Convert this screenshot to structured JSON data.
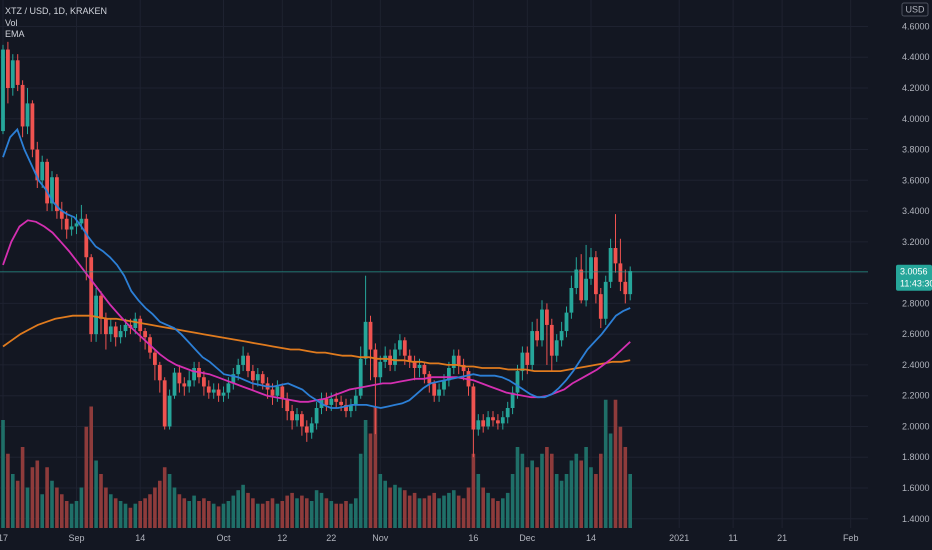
{
  "legend": {
    "symbol": "XTZ / USD, 1D, KRAKEN",
    "vol": "Vol",
    "ema": "EMA"
  },
  "currency_label": "USD",
  "colors": {
    "up": "#26a69a",
    "down": "#ef5350",
    "vol_up": "#1f6f68",
    "vol_down": "#8e3b3b",
    "ema_fast": "#2c7fd6",
    "ema_mid": "#d42fb1",
    "ema_slow": "#e07b1e",
    "current": "#26a69a",
    "grid": "#1e2230"
  },
  "current_price": {
    "label": "3.0056",
    "countdown": "11:43:30",
    "value": 3.0056
  },
  "chart_data": {
    "type": "candlestick",
    "title": "XTZ / USD, 1D, KRAKEN",
    "ylim": [
      1.34,
      4.72
    ],
    "y_ticks": [
      "4.6000",
      "4.4000",
      "4.2000",
      "4.0000",
      "3.8000",
      "3.6000",
      "3.4000",
      "3.2000",
      "3.0000",
      "2.8000",
      "2.6000",
      "2.4000",
      "2.2000",
      "2.0000",
      "1.8000",
      "1.6000",
      "1.4000"
    ],
    "y_tick_values": [
      4.6,
      4.4,
      4.2,
      4.0,
      3.8,
      3.6,
      3.4,
      3.2,
      3.0,
      2.8,
      2.6,
      2.4,
      2.2,
      2.0,
      1.8,
      1.6,
      1.4
    ],
    "x_ticks": [
      "17",
      "Sep",
      "14",
      "Oct",
      "12",
      "22",
      "Nov",
      "16",
      "Dec",
      "14",
      "2021",
      "11",
      "21",
      "Feb"
    ],
    "x_tick_index": [
      0,
      15,
      28,
      45,
      57,
      67,
      77,
      96,
      107,
      120,
      138,
      149,
      159,
      173
    ],
    "candles": [
      [
        3.92,
        4.45,
        4.48,
        3.9,
        80
      ],
      [
        4.45,
        4.2,
        4.5,
        4.1,
        55
      ],
      [
        4.2,
        4.38,
        4.42,
        4.15,
        40
      ],
      [
        4.38,
        4.22,
        4.42,
        4.18,
        35
      ],
      [
        4.22,
        3.95,
        4.25,
        3.88,
        60
      ],
      [
        3.95,
        4.1,
        4.2,
        3.9,
        30
      ],
      [
        4.1,
        3.8,
        4.12,
        3.75,
        45
      ],
      [
        3.8,
        3.6,
        3.85,
        3.55,
        50
      ],
      [
        3.6,
        3.72,
        3.76,
        3.55,
        25
      ],
      [
        3.72,
        3.45,
        3.74,
        3.4,
        45
      ],
      [
        3.45,
        3.62,
        3.66,
        3.4,
        35
      ],
      [
        3.62,
        3.4,
        3.64,
        3.35,
        30
      ],
      [
        3.4,
        3.35,
        3.46,
        3.28,
        25
      ],
      [
        3.35,
        3.28,
        3.4,
        3.22,
        20
      ],
      [
        3.28,
        3.3,
        3.36,
        3.24,
        18
      ],
      [
        3.3,
        3.32,
        3.38,
        3.25,
        20
      ],
      [
        3.32,
        3.35,
        3.44,
        3.28,
        30
      ],
      [
        3.35,
        3.1,
        3.38,
        2.95,
        75
      ],
      [
        3.1,
        2.6,
        3.12,
        2.55,
        90
      ],
      [
        2.6,
        2.85,
        2.9,
        2.55,
        50
      ],
      [
        2.85,
        2.7,
        2.88,
        2.6,
        40
      ],
      [
        2.7,
        2.6,
        2.74,
        2.5,
        30
      ],
      [
        2.6,
        2.65,
        2.7,
        2.55,
        25
      ],
      [
        2.65,
        2.58,
        2.68,
        2.52,
        22
      ],
      [
        2.58,
        2.62,
        2.66,
        2.54,
        20
      ],
      [
        2.62,
        2.66,
        2.7,
        2.58,
        18
      ],
      [
        2.66,
        2.64,
        2.7,
        2.6,
        15
      ],
      [
        2.64,
        2.7,
        2.74,
        2.6,
        18
      ],
      [
        2.7,
        2.62,
        2.72,
        2.55,
        20
      ],
      [
        2.62,
        2.58,
        2.64,
        2.5,
        22
      ],
      [
        2.58,
        2.48,
        2.6,
        2.44,
        25
      ],
      [
        2.48,
        2.4,
        2.5,
        2.3,
        30
      ],
      [
        2.4,
        2.3,
        2.42,
        2.22,
        35
      ],
      [
        2.3,
        2.0,
        2.32,
        1.98,
        45
      ],
      [
        2.0,
        2.2,
        2.24,
        1.98,
        40
      ],
      [
        2.2,
        2.35,
        2.38,
        2.18,
        30
      ],
      [
        2.35,
        2.28,
        2.4,
        2.22,
        25
      ],
      [
        2.28,
        2.26,
        2.32,
        2.2,
        22
      ],
      [
        2.26,
        2.3,
        2.36,
        2.22,
        20
      ],
      [
        2.3,
        2.38,
        2.42,
        2.26,
        24
      ],
      [
        2.38,
        2.32,
        2.42,
        2.28,
        20
      ],
      [
        2.32,
        2.26,
        2.36,
        2.2,
        22
      ],
      [
        2.26,
        2.22,
        2.3,
        2.18,
        20
      ],
      [
        2.22,
        2.24,
        2.28,
        2.18,
        18
      ],
      [
        2.24,
        2.2,
        2.28,
        2.16,
        16
      ],
      [
        2.2,
        2.22,
        2.26,
        2.16,
        18
      ],
      [
        2.22,
        2.28,
        2.32,
        2.18,
        20
      ],
      [
        2.28,
        2.34,
        2.38,
        2.24,
        24
      ],
      [
        2.34,
        2.4,
        2.44,
        2.3,
        28
      ],
      [
        2.4,
        2.46,
        2.52,
        2.36,
        32
      ],
      [
        2.46,
        2.36,
        2.48,
        2.32,
        26
      ],
      [
        2.36,
        2.3,
        2.4,
        2.24,
        22
      ],
      [
        2.3,
        2.34,
        2.38,
        2.26,
        18
      ],
      [
        2.34,
        2.28,
        2.36,
        2.24,
        18
      ],
      [
        2.28,
        2.24,
        2.32,
        2.18,
        20
      ],
      [
        2.24,
        2.2,
        2.28,
        2.14,
        22
      ],
      [
        2.2,
        2.26,
        2.3,
        2.16,
        18
      ],
      [
        2.26,
        2.18,
        2.28,
        2.12,
        20
      ],
      [
        2.18,
        2.1,
        2.22,
        2.04,
        24
      ],
      [
        2.1,
        2.04,
        2.14,
        1.98,
        26
      ],
      [
        2.04,
        2.08,
        2.12,
        2.0,
        22
      ],
      [
        2.08,
        2.0,
        2.1,
        1.94,
        24
      ],
      [
        2.0,
        1.96,
        2.04,
        1.9,
        22
      ],
      [
        1.96,
        2.02,
        2.06,
        1.92,
        20
      ],
      [
        2.02,
        2.12,
        2.16,
        1.98,
        28
      ],
      [
        2.12,
        2.18,
        2.22,
        2.08,
        26
      ],
      [
        2.18,
        2.14,
        2.22,
        2.1,
        22
      ],
      [
        2.14,
        2.18,
        2.22,
        2.1,
        20
      ],
      [
        2.18,
        2.16,
        2.22,
        2.12,
        18
      ],
      [
        2.16,
        2.14,
        2.2,
        2.1,
        18
      ],
      [
        2.14,
        2.1,
        2.18,
        2.06,
        20
      ],
      [
        2.1,
        2.14,
        2.18,
        2.06,
        18
      ],
      [
        2.14,
        2.2,
        2.24,
        2.1,
        22
      ],
      [
        2.2,
        2.44,
        2.52,
        2.18,
        55
      ],
      [
        2.44,
        2.68,
        2.98,
        2.4,
        80
      ],
      [
        2.68,
        2.5,
        2.72,
        2.3,
        70
      ],
      [
        2.5,
        2.32,
        2.54,
        1.95,
        90
      ],
      [
        2.32,
        2.42,
        2.46,
        2.28,
        40
      ],
      [
        2.42,
        2.46,
        2.52,
        2.38,
        35
      ],
      [
        2.46,
        2.4,
        2.5,
        2.36,
        30
      ],
      [
        2.4,
        2.5,
        2.54,
        2.36,
        32
      ],
      [
        2.5,
        2.56,
        2.6,
        2.46,
        30
      ],
      [
        2.56,
        2.46,
        2.58,
        2.4,
        28
      ],
      [
        2.46,
        2.42,
        2.5,
        2.38,
        24
      ],
      [
        2.42,
        2.38,
        2.46,
        2.3,
        26
      ],
      [
        2.38,
        2.4,
        2.44,
        2.32,
        22
      ],
      [
        2.4,
        2.34,
        2.42,
        2.28,
        22
      ],
      [
        2.34,
        2.28,
        2.36,
        2.22,
        24
      ],
      [
        2.28,
        2.2,
        2.3,
        2.16,
        26
      ],
      [
        2.2,
        2.24,
        2.28,
        2.16,
        22
      ],
      [
        2.24,
        2.3,
        2.34,
        2.2,
        24
      ],
      [
        2.3,
        2.38,
        2.42,
        2.26,
        26
      ],
      [
        2.38,
        2.46,
        2.5,
        2.34,
        28
      ],
      [
        2.46,
        2.4,
        2.5,
        2.34,
        24
      ],
      [
        2.4,
        2.36,
        2.44,
        2.3,
        22
      ],
      [
        2.36,
        2.26,
        2.38,
        2.2,
        30
      ],
      [
        2.26,
        1.98,
        2.28,
        1.8,
        55
      ],
      [
        1.98,
        2.04,
        2.08,
        1.94,
        40
      ],
      [
        2.04,
        2.0,
        2.08,
        1.96,
        30
      ],
      [
        2.0,
        2.06,
        2.1,
        1.98,
        26
      ],
      [
        2.06,
        2.04,
        2.1,
        2.0,
        22
      ],
      [
        2.04,
        2.02,
        2.08,
        1.98,
        20
      ],
      [
        2.02,
        2.06,
        2.1,
        1.98,
        22
      ],
      [
        2.06,
        2.12,
        2.16,
        2.02,
        26
      ],
      [
        2.12,
        2.22,
        2.26,
        2.08,
        40
      ],
      [
        2.22,
        2.36,
        2.4,
        2.18,
        60
      ],
      [
        2.36,
        2.48,
        2.52,
        2.3,
        55
      ],
      [
        2.48,
        2.4,
        2.52,
        2.34,
        45
      ],
      [
        2.4,
        2.62,
        2.68,
        2.36,
        50
      ],
      [
        2.62,
        2.56,
        2.7,
        2.52,
        45
      ],
      [
        2.56,
        2.76,
        2.82,
        2.52,
        55
      ],
      [
        2.76,
        2.66,
        2.8,
        2.4,
        60
      ],
      [
        2.66,
        2.46,
        2.7,
        2.36,
        55
      ],
      [
        2.46,
        2.56,
        2.6,
        2.42,
        40
      ],
      [
        2.56,
        2.62,
        2.68,
        2.52,
        35
      ],
      [
        2.62,
        2.74,
        2.78,
        2.58,
        40
      ],
      [
        2.74,
        2.9,
        2.98,
        2.7,
        50
      ],
      [
        2.9,
        3.02,
        3.1,
        2.86,
        55
      ],
      [
        3.02,
        2.82,
        3.12,
        2.8,
        50
      ],
      [
        2.82,
        2.96,
        3.18,
        2.78,
        60
      ],
      [
        2.96,
        3.1,
        3.16,
        2.92,
        45
      ],
      [
        3.1,
        2.86,
        3.14,
        2.8,
        40
      ],
      [
        2.86,
        2.7,
        2.9,
        2.64,
        55
      ],
      [
        2.7,
        2.94,
        2.98,
        2.66,
        95
      ],
      [
        2.94,
        3.16,
        3.22,
        2.9,
        70
      ],
      [
        3.16,
        3.06,
        3.38,
        3.0,
        95
      ],
      [
        3.06,
        2.94,
        3.22,
        2.88,
        75
      ],
      [
        2.94,
        2.86,
        3.02,
        2.8,
        60
      ],
      [
        2.86,
        3.01,
        3.04,
        2.82,
        40
      ]
    ],
    "ema_fast": [
      3.75,
      3.88,
      3.93,
      3.8,
      3.7,
      3.6,
      3.54,
      3.46,
      3.41,
      3.38,
      3.36,
      3.3,
      3.23,
      3.17,
      3.14,
      3.1,
      3.05,
      2.98,
      2.88,
      2.82,
      2.77,
      2.73,
      2.68,
      2.66,
      2.64,
      2.6,
      2.55,
      2.5,
      2.45,
      2.42,
      2.38,
      2.34,
      2.33,
      2.32,
      2.3,
      2.28,
      2.27,
      2.26,
      2.26,
      2.27,
      2.28,
      2.26,
      2.24,
      2.2,
      2.17,
      2.14,
      2.12,
      2.12,
      2.13,
      2.14,
      2.14,
      2.14,
      2.13,
      2.12,
      2.13,
      2.14,
      2.15,
      2.17,
      2.21,
      2.25,
      2.28,
      2.29,
      2.3,
      2.31,
      2.32,
      2.33,
      2.34,
      2.33,
      2.33,
      2.33,
      2.32,
      2.3,
      2.27,
      2.24,
      2.21,
      2.19,
      2.19,
      2.21,
      2.25,
      2.3,
      2.36,
      2.43,
      2.5,
      2.55,
      2.6,
      2.66,
      2.72,
      2.75,
      2.77
    ],
    "ema_mid": [
      3.05,
      3.2,
      3.3,
      3.34,
      3.33,
      3.3,
      3.26,
      3.2,
      3.14,
      3.07,
      3.0,
      2.93,
      2.86,
      2.79,
      2.73,
      2.67,
      2.62,
      2.57,
      2.52,
      2.47,
      2.43,
      2.4,
      2.38,
      2.36,
      2.35,
      2.34,
      2.32,
      2.3,
      2.28,
      2.26,
      2.24,
      2.22,
      2.2,
      2.19,
      2.18,
      2.17,
      2.16,
      2.16,
      2.17,
      2.18,
      2.2,
      2.22,
      2.24,
      2.25,
      2.26,
      2.27,
      2.28,
      2.28,
      2.29,
      2.3,
      2.31,
      2.31,
      2.32,
      2.32,
      2.32,
      2.32,
      2.31,
      2.3,
      2.28,
      2.26,
      2.24,
      2.22,
      2.21,
      2.2,
      2.19,
      2.19,
      2.2,
      2.22,
      2.24,
      2.28,
      2.31,
      2.34,
      2.37,
      2.41,
      2.45,
      2.5,
      2.55
    ],
    "ema_slow": [
      2.52,
      2.56,
      2.6,
      2.63,
      2.66,
      2.68,
      2.7,
      2.71,
      2.72,
      2.72,
      2.72,
      2.71,
      2.7,
      2.7,
      2.69,
      2.68,
      2.67,
      2.66,
      2.65,
      2.64,
      2.63,
      2.62,
      2.61,
      2.6,
      2.59,
      2.58,
      2.57,
      2.56,
      2.55,
      2.54,
      2.53,
      2.52,
      2.51,
      2.5,
      2.5,
      2.49,
      2.48,
      2.48,
      2.47,
      2.46,
      2.46,
      2.45,
      2.45,
      2.44,
      2.44,
      2.43,
      2.43,
      2.42,
      2.42,
      2.41,
      2.41,
      2.4,
      2.4,
      2.39,
      2.39,
      2.38,
      2.38,
      2.38,
      2.37,
      2.37,
      2.37,
      2.36,
      2.36,
      2.36,
      2.36,
      2.37,
      2.38,
      2.39,
      2.4,
      2.41,
      2.42,
      2.42,
      2.43
    ]
  }
}
